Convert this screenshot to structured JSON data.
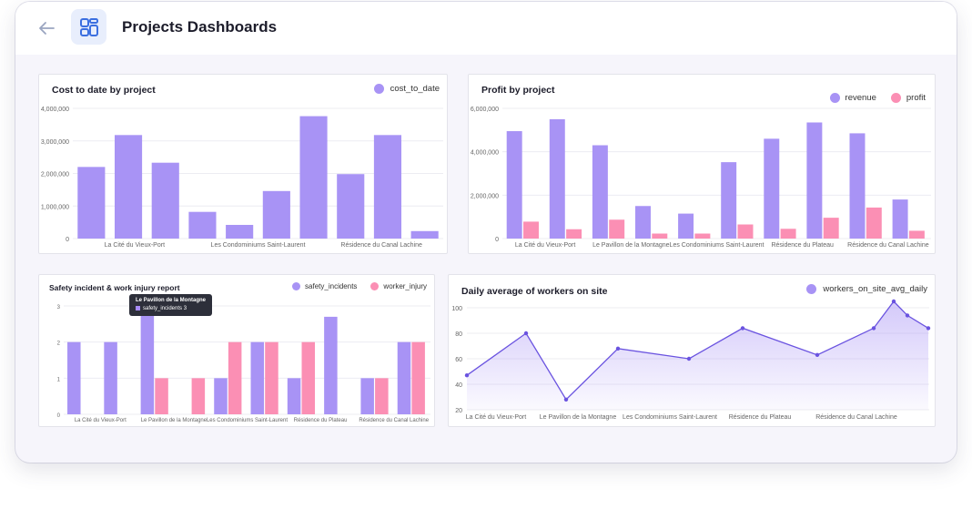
{
  "header": {
    "title": "Projects Dashboards"
  },
  "colors": {
    "purple": "#a893f5",
    "pink": "#fb8fb4",
    "line": "#6a53e0"
  },
  "icons": {
    "back": "arrow-left-icon",
    "app": "dashboard-grid-icon"
  },
  "charts": {
    "cost": {
      "title": "Cost to date by project",
      "legend": [
        "cost_to_date"
      ],
      "chart_data": {
        "type": "bar",
        "title": "Cost to date by project",
        "yticks": [
          "0",
          "1,000,000",
          "2,000,000",
          "3,000,000",
          "4,000,000"
        ],
        "ylim": [
          0,
          4000000
        ],
        "xlabels": [
          "La Cité du Vieux-Port",
          "Les Condominiums Saint-Laurent",
          "Résidence du Canal Lachine"
        ],
        "series": [
          {
            "name": "cost_to_date",
            "values": [
              2200000,
              3180000,
              2330000,
              820000,
              420000,
              1460000,
              3760000,
              1980000,
              3180000,
              230000
            ]
          }
        ]
      }
    },
    "profit": {
      "title": "Profit by project",
      "legend": [
        "revenue",
        "profit"
      ],
      "chart_data": {
        "type": "bar",
        "title": "Profit by project",
        "yticks": [
          "0",
          "2,000,000",
          "4,000,000",
          "6,000,000"
        ],
        "ylim": [
          0,
          6000000
        ],
        "xlabels": [
          "La Cité du Vieux-Port",
          "Le Pavillon de la Montagne",
          "Les Condominiums Saint-Laurent",
          "Résidence du Plateau",
          "Résidence du Canal Lachine"
        ],
        "series": [
          {
            "name": "revenue",
            "values": [
              4950000,
              5500000,
              4300000,
              1500000,
              1150000,
              3520000,
              4600000,
              5350000,
              4850000,
              1800000
            ]
          },
          {
            "name": "profit",
            "values": [
              780000,
              430000,
              870000,
              230000,
              230000,
              650000,
              450000,
              960000,
              1430000,
              360000
            ]
          }
        ]
      }
    },
    "safety": {
      "title": "Safety incident & work injury report",
      "legend": [
        "safety_incidents",
        "worker_injury"
      ],
      "tooltip": {
        "title": "Le Pavillon de la Montagne",
        "label": "safety_incidents",
        "value": "3"
      },
      "chart_data": {
        "type": "bar",
        "title": "Safety incident & work injury report",
        "yticks": [
          "0",
          "1",
          "2",
          "3"
        ],
        "ylim": [
          0,
          3
        ],
        "xlabels": [
          "La Cité du Vieux-Port",
          "Le Pavillon de la Montagne",
          "Les Condominiums Saint-Laurent",
          "Résidence du Plateau",
          "Résidence du Canal Lachine"
        ],
        "series": [
          {
            "name": "safety_incidents",
            "values": [
              2,
              2,
              3,
              null,
              1,
              2,
              1,
              2.7,
              1,
              2
            ]
          },
          {
            "name": "worker_injury",
            "values": [
              null,
              null,
              1,
              1,
              2,
              2,
              2,
              null,
              1,
              2
            ]
          }
        ]
      }
    },
    "workers": {
      "title": "Daily average of workers on site",
      "legend": [
        "workers_on_site_avg_daily"
      ],
      "chart_data": {
        "type": "area",
        "title": "Daily average of workers on site",
        "yticks": [
          "20",
          "40",
          "60",
          "80",
          "100"
        ],
        "ylim": [
          20,
          105
        ],
        "xlabels": [
          "La Cité du Vieux-Port",
          "Le Pavillon de la Montagne",
          "Les Condominiums Saint-Laurent",
          "Résidence du Plateau",
          "Résidence du Canal Lachine"
        ],
        "series": [
          {
            "name": "workers_on_site_avg_daily",
            "values": [
              47,
              80,
              28,
              68,
              60,
              84,
              63,
              84,
              105,
              94,
              84
            ]
          }
        ]
      }
    }
  }
}
